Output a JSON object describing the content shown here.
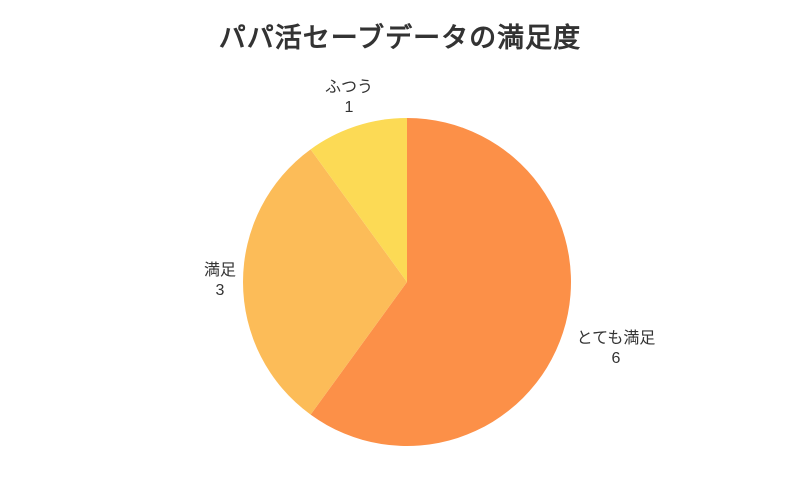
{
  "chart_data": {
    "type": "pie",
    "title": "パパ活セーブデータの満足度",
    "total": 10,
    "start_angle_deg": 0,
    "direction": "clockwise",
    "legend_position": "none",
    "labels_outside": true,
    "title_color": "#333333",
    "label_color": "#333333",
    "background_color": "#ffffff",
    "segments": [
      {
        "id": "very-satisfied",
        "label": "とても満足",
        "value": 6,
        "percent": 60,
        "color": "#FC9048"
      },
      {
        "id": "satisfied",
        "label": "満足",
        "value": 3,
        "percent": 30,
        "color": "#FCBC58"
      },
      {
        "id": "normal",
        "label": "ふつう",
        "value": 1,
        "percent": 10,
        "color": "#FCDA55"
      }
    ]
  }
}
